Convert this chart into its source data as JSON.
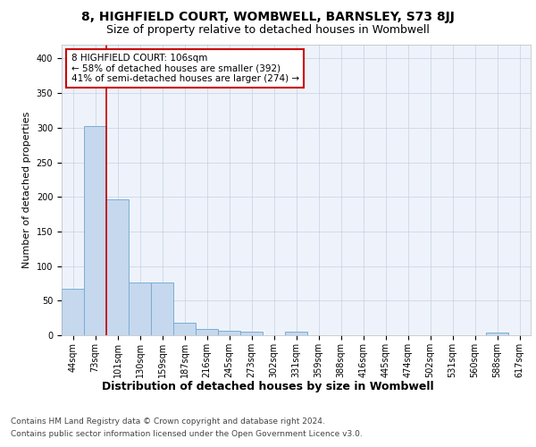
{
  "title": "8, HIGHFIELD COURT, WOMBWELL, BARNSLEY, S73 8JJ",
  "subtitle": "Size of property relative to detached houses in Wombwell",
  "xlabel": "Distribution of detached houses by size in Wombwell",
  "ylabel": "Number of detached properties",
  "bar_color": "#c5d8ee",
  "bar_edge_color": "#7aadd4",
  "background_color": "#ffffff",
  "axes_facecolor": "#eef3fb",
  "grid_color": "#c8d0e0",
  "categories": [
    "44sqm",
    "73sqm",
    "101sqm",
    "130sqm",
    "159sqm",
    "187sqm",
    "216sqm",
    "245sqm",
    "273sqm",
    "302sqm",
    "331sqm",
    "359sqm",
    "388sqm",
    "416sqm",
    "445sqm",
    "474sqm",
    "502sqm",
    "531sqm",
    "560sqm",
    "588sqm",
    "617sqm"
  ],
  "values": [
    67,
    302,
    197,
    76,
    76,
    18,
    9,
    6,
    5,
    0,
    5,
    0,
    0,
    0,
    0,
    0,
    0,
    0,
    0,
    4,
    0
  ],
  "ylim": [
    0,
    420
  ],
  "yticks": [
    0,
    50,
    100,
    150,
    200,
    250,
    300,
    350,
    400
  ],
  "property_line_color": "#cc0000",
  "annotation_box_text": "8 HIGHFIELD COURT: 106sqm\n← 58% of detached houses are smaller (392)\n41% of semi-detached houses are larger (274) →",
  "annotation_box_edge_color": "#cc0000",
  "footer_line1": "Contains HM Land Registry data © Crown copyright and database right 2024.",
  "footer_line2": "Contains public sector information licensed under the Open Government Licence v3.0.",
  "title_fontsize": 10,
  "subtitle_fontsize": 9,
  "xlabel_fontsize": 9,
  "ylabel_fontsize": 8,
  "tick_fontsize": 7,
  "annotation_fontsize": 7.5,
  "footer_fontsize": 6.5
}
